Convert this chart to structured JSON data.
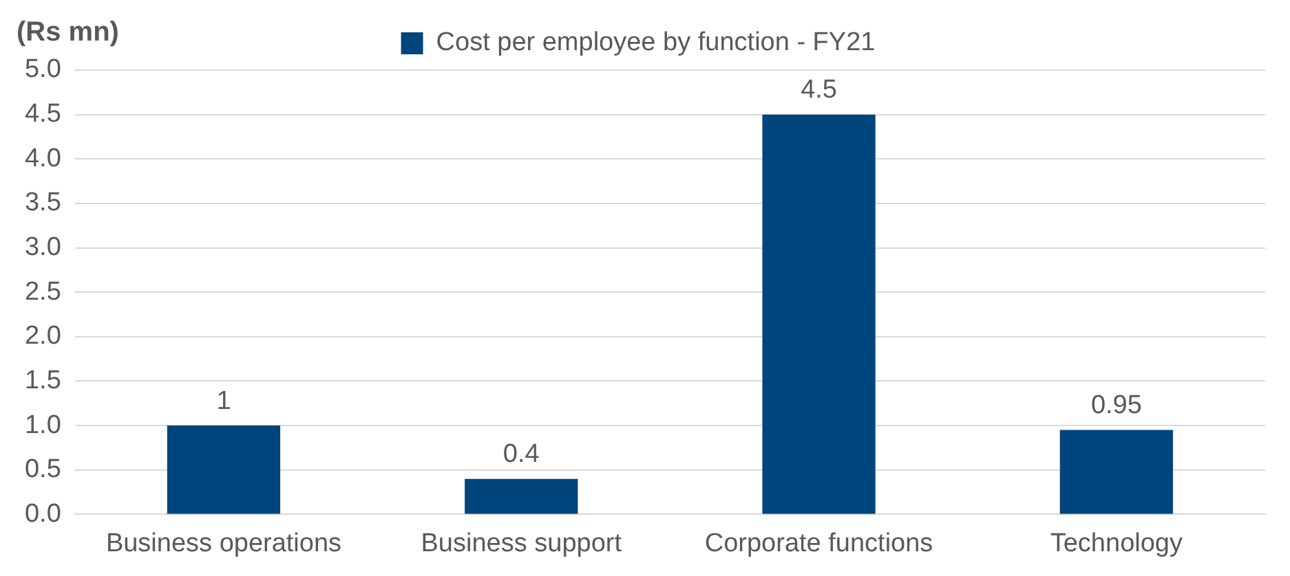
{
  "chart_data": {
    "type": "bar",
    "ylabel": "(Rs mn)",
    "categories": [
      "Business operations",
      "Business support",
      "Corporate functions",
      "Technology"
    ],
    "series": [
      {
        "name": "Cost per employee by function - FY21",
        "color": "#00457c",
        "values": [
          1,
          0.4,
          4.5,
          0.95
        ]
      }
    ],
    "ylim": [
      0,
      5
    ],
    "yticks": [
      {
        "value": 0,
        "label": "0.0"
      },
      0.5,
      {
        "value": 1,
        "label": "1.0"
      },
      1.5,
      {
        "value": 2,
        "label": "2.0"
      },
      2.5,
      {
        "value": 3,
        "label": "3.0"
      },
      3.5,
      {
        "value": 4,
        "label": "4.0"
      },
      4.5,
      {
        "value": 5,
        "label": "5.0"
      }
    ],
    "grid": "y",
    "legend": "top",
    "data_labels": true
  }
}
